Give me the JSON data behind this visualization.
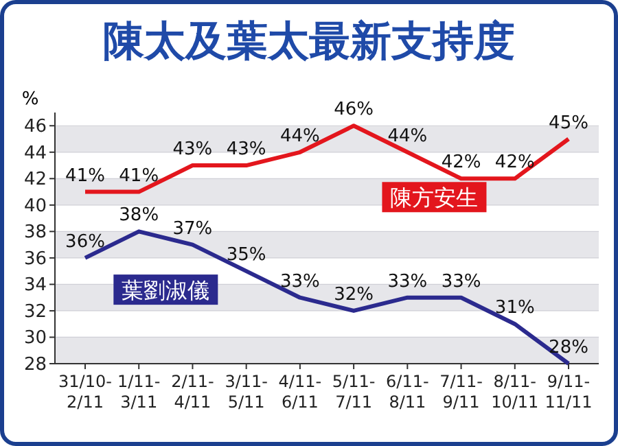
{
  "chart_data": {
    "type": "line",
    "title": "陳太及葉太最新支持度",
    "ylabel": "%",
    "categories": [
      "31/10-2/11",
      "1/11-3/11",
      "2/11-4/11",
      "3/11-5/11",
      "4/11-6/11",
      "5/11-7/11",
      "6/11-8/11",
      "7/11-9/11",
      "8/11-10/11",
      "9/11-11/11"
    ],
    "series": [
      {
        "name": "陳方安生",
        "color": "#e3161d",
        "values": [
          41,
          41,
          43,
          43,
          44,
          46,
          44,
          42,
          42,
          45
        ],
        "value_labels": [
          "41%",
          "41%",
          "43%",
          "43%",
          "44%",
          "46%",
          "44%",
          "42%",
          "42%",
          "45%"
        ]
      },
      {
        "name": "葉劉淑儀",
        "color": "#2b2a8e",
        "values": [
          36,
          38,
          37,
          35,
          33,
          32,
          33,
          33,
          31,
          28
        ],
        "value_labels": [
          "36%",
          "38%",
          "37%",
          "35%",
          "33%",
          "32%",
          "33%",
          "33%",
          "31%",
          "28%"
        ]
      }
    ],
    "ylim": [
      28,
      47
    ],
    "yticks": [
      28,
      30,
      32,
      34,
      36,
      38,
      40,
      42,
      44,
      46
    ],
    "grid": "y",
    "legend": false,
    "marker": "none",
    "line_style": "solid"
  }
}
